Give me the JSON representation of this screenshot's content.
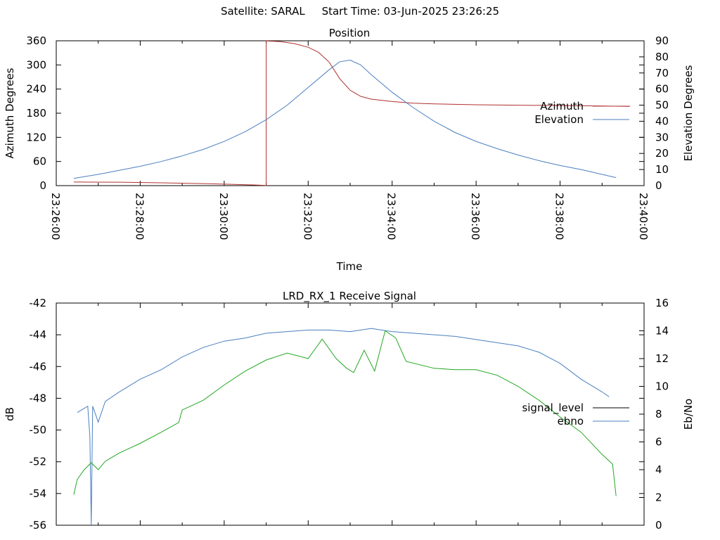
{
  "header": {
    "satellite_label": "Satellite:",
    "satellite": "SARAL",
    "start_label": "Start Time:",
    "start_time": "03-Jun-2025 23:26:25"
  },
  "chart_data": [
    {
      "type": "line",
      "title": "Position",
      "xlabel": "Time",
      "ylabel": "Azimuth Degrees",
      "y2label": "Elevation Degrees",
      "x_ticks": [
        "23:26:00",
        "23:28:00",
        "23:30:00",
        "23:32:00",
        "23:34:00",
        "23:36:00",
        "23:38:00",
        "23:40:00"
      ],
      "xlim": [
        "23:26:00",
        "23:40:00"
      ],
      "ylim": [
        0,
        360
      ],
      "y_ticks": [
        0,
        60,
        120,
        180,
        240,
        300,
        360
      ],
      "y2lim": [
        0,
        90
      ],
      "y2_ticks": [
        0,
        10,
        20,
        30,
        40,
        50,
        60,
        70,
        80,
        90
      ],
      "grid": false,
      "legend_position": "right",
      "series": [
        {
          "name": "Azimuth",
          "axis": "y",
          "color": "#b03030",
          "x": [
            "23:26:25",
            "23:27:30",
            "23:28:30",
            "23:29:30",
            "23:30:15",
            "23:30:45",
            "23:31:00",
            "23:31:00",
            "23:31:20",
            "23:31:40",
            "23:32:00",
            "23:32:15",
            "23:32:30",
            "23:32:45",
            "23:33:00",
            "23:33:15",
            "23:33:30",
            "23:34:00",
            "23:34:30",
            "23:35:00",
            "23:36:00",
            "23:37:00",
            "23:38:00",
            "23:39:00",
            "23:39:40"
          ],
          "values": [
            9,
            8.5,
            7,
            5,
            3,
            1.5,
            0.5,
            359.5,
            358,
            353,
            344,
            331,
            307,
            266,
            237,
            222,
            215,
            209,
            205,
            203,
            201,
            200,
            199,
            198,
            197
          ]
        },
        {
          "name": "Elevation",
          "axis": "y2",
          "color": "#4a7fc0",
          "x": [
            "23:26:25",
            "23:27:00",
            "23:27:30",
            "23:28:00",
            "23:28:30",
            "23:29:00",
            "23:29:30",
            "23:30:00",
            "23:30:30",
            "23:31:00",
            "23:31:30",
            "23:32:00",
            "23:32:30",
            "23:32:45",
            "23:33:00",
            "23:33:15",
            "23:33:30",
            "23:34:00",
            "23:34:30",
            "23:35:00",
            "23:35:30",
            "23:36:00",
            "23:36:30",
            "23:37:00",
            "23:37:30",
            "23:38:00",
            "23:38:30",
            "23:39:00",
            "23:39:20"
          ],
          "values": [
            4.5,
            7,
            9.5,
            12,
            15,
            18.5,
            22.5,
            27.5,
            33.5,
            41,
            50,
            61,
            72,
            77,
            78,
            75,
            69,
            58,
            48.5,
            40,
            33,
            27.5,
            23,
            19,
            15.5,
            12.5,
            10,
            7,
            5
          ]
        }
      ]
    },
    {
      "type": "line",
      "title": "LRD_RX_1 Receive Signal",
      "xlabel": "",
      "ylabel": "dB",
      "y2label": "Eb/No",
      "xlim": [
        "23:26:00",
        "23:40:00"
      ],
      "ylim": [
        -56,
        -42
      ],
      "y_ticks": [
        -56,
        -54,
        -52,
        -50,
        -48,
        -46,
        -44,
        -42
      ],
      "y2lim": [
        0,
        16
      ],
      "y2_ticks": [
        0,
        2,
        4,
        6,
        8,
        10,
        12,
        14,
        16
      ],
      "grid": false,
      "legend_position": "right",
      "legend_entries": [
        {
          "name": "signal_level",
          "color": "#000000"
        },
        {
          "name": "ebno",
          "color": "#4a7fc0"
        }
      ],
      "series": [
        {
          "name": "signal_level",
          "axis": "y",
          "color": "#4a7fc0",
          "x": [
            "23:26:30",
            "23:26:45",
            "23:26:48",
            "23:26:50",
            "23:26:52",
            "23:27:00",
            "23:27:10",
            "23:27:30",
            "23:28:00",
            "23:28:30",
            "23:29:00",
            "23:29:30",
            "23:30:00",
            "23:30:30",
            "23:31:00",
            "23:31:30",
            "23:32:00",
            "23:32:30",
            "23:33:00",
            "23:33:30",
            "23:34:00",
            "23:34:30",
            "23:35:00",
            "23:35:30",
            "23:36:00",
            "23:36:30",
            "23:37:00",
            "23:37:30",
            "23:38:00",
            "23:38:30",
            "23:39:00",
            "23:39:10"
          ],
          "values": [
            -48.9,
            -48.5,
            -50.4,
            -56,
            -48.5,
            -49.5,
            -48.2,
            -47.6,
            -46.8,
            -46.2,
            -45.4,
            -44.8,
            -44.4,
            -44.2,
            -43.9,
            -43.8,
            -43.7,
            -43.7,
            -43.8,
            -43.6,
            -43.8,
            -43.9,
            -44.0,
            -44.1,
            -44.3,
            -44.5,
            -44.7,
            -45.1,
            -45.8,
            -46.8,
            -47.6,
            -47.9
          ]
        },
        {
          "name": "ebno",
          "axis": "y2",
          "color": "#22a722",
          "x": [
            "23:26:25",
            "23:26:30",
            "23:26:40",
            "23:26:50",
            "23:27:00",
            "23:27:10",
            "23:27:20",
            "23:27:30",
            "23:28:00",
            "23:28:30",
            "23:28:55",
            "23:29:00",
            "23:29:30",
            "23:30:00",
            "23:30:30",
            "23:31:00",
            "23:31:30",
            "23:32:00",
            "23:32:20",
            "23:32:40",
            "23:32:55",
            "23:33:05",
            "23:33:20",
            "23:33:35",
            "23:33:50",
            "23:34:05",
            "23:34:20",
            "23:35:00",
            "23:35:30",
            "23:36:00",
            "23:36:30",
            "23:37:00",
            "23:37:30",
            "23:38:00",
            "23:38:30",
            "23:39:00",
            "23:39:15",
            "23:39:20"
          ],
          "values": [
            2.2,
            3.3,
            4.0,
            4.5,
            4.0,
            4.6,
            4.9,
            5.2,
            5.9,
            6.7,
            7.4,
            8.3,
            9.0,
            10.1,
            11.1,
            11.9,
            12.4,
            12.0,
            13.4,
            12.0,
            11.3,
            11.0,
            12.6,
            11.1,
            14.0,
            13.5,
            11.8,
            11.3,
            11.2,
            11.2,
            10.8,
            10.0,
            9.0,
            7.8,
            6.7,
            5.1,
            4.4,
            2.1
          ]
        }
      ]
    }
  ]
}
